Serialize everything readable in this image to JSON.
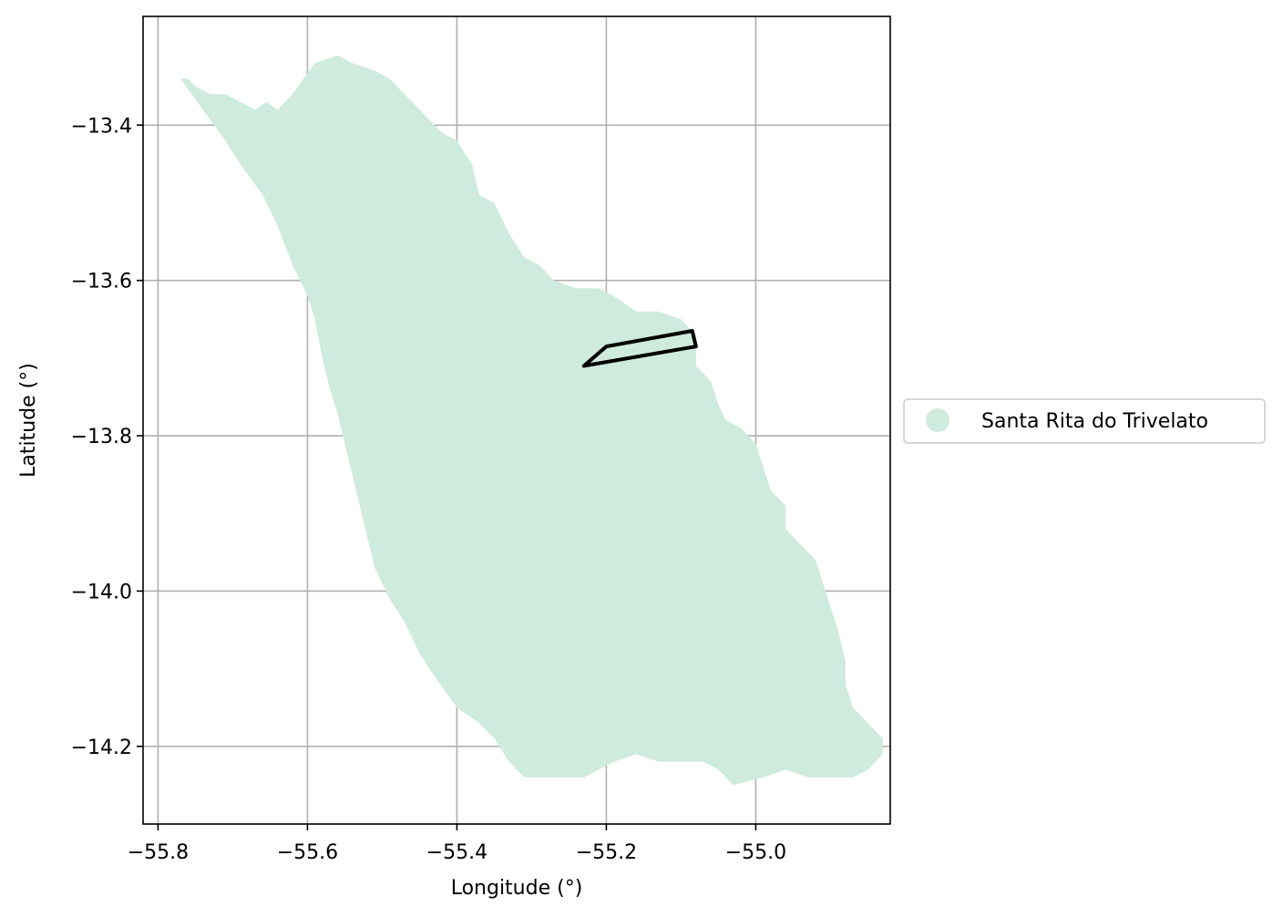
{
  "chart_data": {
    "type": "map",
    "xlabel": "Longitude (°)",
    "ylabel": "Latitude (°)",
    "xlim": [
      -55.82,
      -54.82
    ],
    "ylim": [
      -14.3,
      -13.26
    ],
    "xticks": [
      {
        "value": -55.8,
        "label": "−55.8"
      },
      {
        "value": -55.6,
        "label": "−55.6"
      },
      {
        "value": -55.4,
        "label": "−55.4"
      },
      {
        "value": -55.2,
        "label": "−55.2"
      },
      {
        "value": -55.0,
        "label": "−55.0"
      }
    ],
    "yticks": [
      {
        "value": -13.4,
        "label": "−13.4"
      },
      {
        "value": -13.6,
        "label": "−13.6"
      },
      {
        "value": -13.8,
        "label": "−13.8"
      },
      {
        "value": -14.0,
        "label": "−14.0"
      },
      {
        "value": -14.2,
        "label": "−14.2"
      }
    ],
    "grid": true,
    "legend": {
      "placement": "right",
      "entries": [
        {
          "label": "Santa Rita do Trivelato",
          "color": "#cfebdd"
        }
      ]
    },
    "region": {
      "name": "Santa Rita do Trivelato",
      "fill": "#cfebdd",
      "outline": [
        [
          -55.77,
          -13.34
        ],
        [
          -55.76,
          -13.34
        ],
        [
          -55.75,
          -13.35
        ],
        [
          -55.73,
          -13.36
        ],
        [
          -55.71,
          -13.36
        ],
        [
          -55.69,
          -13.37
        ],
        [
          -55.67,
          -13.38
        ],
        [
          -55.655,
          -13.37
        ],
        [
          -55.64,
          -13.38
        ],
        [
          -55.62,
          -13.36
        ],
        [
          -55.59,
          -13.32
        ],
        [
          -55.56,
          -13.31
        ],
        [
          -55.54,
          -13.32
        ],
        [
          -55.51,
          -13.33
        ],
        [
          -55.49,
          -13.34
        ],
        [
          -55.46,
          -13.37
        ],
        [
          -55.44,
          -13.39
        ],
        [
          -55.42,
          -13.41
        ],
        [
          -55.4,
          -13.42
        ],
        [
          -55.38,
          -13.45
        ],
        [
          -55.37,
          -13.49
        ],
        [
          -55.35,
          -13.5
        ],
        [
          -55.33,
          -13.54
        ],
        [
          -55.31,
          -13.57
        ],
        [
          -55.29,
          -13.58
        ],
        [
          -55.27,
          -13.6
        ],
        [
          -55.24,
          -13.61
        ],
        [
          -55.21,
          -13.61
        ],
        [
          -55.19,
          -13.62
        ],
        [
          -55.16,
          -13.64
        ],
        [
          -55.13,
          -13.64
        ],
        [
          -55.1,
          -13.65
        ],
        [
          -55.08,
          -13.67
        ],
        [
          -55.08,
          -13.71
        ],
        [
          -55.06,
          -13.73
        ],
        [
          -55.05,
          -13.76
        ],
        [
          -55.04,
          -13.78
        ],
        [
          -55.02,
          -13.79
        ],
        [
          -55.0,
          -13.81
        ],
        [
          -54.99,
          -13.84
        ],
        [
          -54.98,
          -13.87
        ],
        [
          -54.96,
          -13.89
        ],
        [
          -54.96,
          -13.92
        ],
        [
          -54.94,
          -13.94
        ],
        [
          -54.92,
          -13.96
        ],
        [
          -54.91,
          -13.99
        ],
        [
          -54.9,
          -14.02
        ],
        [
          -54.89,
          -14.05
        ],
        [
          -54.88,
          -14.09
        ],
        [
          -54.88,
          -14.12
        ],
        [
          -54.87,
          -14.15
        ],
        [
          -54.85,
          -14.17
        ],
        [
          -54.83,
          -14.19
        ],
        [
          -54.83,
          -14.21
        ],
        [
          -54.85,
          -14.23
        ],
        [
          -54.87,
          -14.24
        ],
        [
          -54.9,
          -14.24
        ],
        [
          -54.93,
          -14.24
        ],
        [
          -54.96,
          -14.23
        ],
        [
          -54.99,
          -14.24
        ],
        [
          -55.03,
          -14.25
        ],
        [
          -55.05,
          -14.23
        ],
        [
          -55.07,
          -14.22
        ],
        [
          -55.1,
          -14.22
        ],
        [
          -55.13,
          -14.22
        ],
        [
          -55.16,
          -14.21
        ],
        [
          -55.19,
          -14.22
        ],
        [
          -55.23,
          -14.24
        ],
        [
          -55.27,
          -14.24
        ],
        [
          -55.31,
          -14.24
        ],
        [
          -55.33,
          -14.22
        ],
        [
          -55.35,
          -14.19
        ],
        [
          -55.37,
          -14.17
        ],
        [
          -55.4,
          -14.15
        ],
        [
          -55.43,
          -14.11
        ],
        [
          -55.45,
          -14.08
        ],
        [
          -55.47,
          -14.04
        ],
        [
          -55.49,
          -14.01
        ],
        [
          -55.51,
          -13.97
        ],
        [
          -55.52,
          -13.93
        ],
        [
          -55.53,
          -13.89
        ],
        [
          -55.54,
          -13.85
        ],
        [
          -55.55,
          -13.81
        ],
        [
          -55.56,
          -13.77
        ],
        [
          -55.57,
          -13.74
        ],
        [
          -55.58,
          -13.7
        ],
        [
          -55.59,
          -13.65
        ],
        [
          -55.6,
          -13.62
        ],
        [
          -55.62,
          -13.58
        ],
        [
          -55.64,
          -13.53
        ],
        [
          -55.66,
          -13.49
        ],
        [
          -55.69,
          -13.45
        ],
        [
          -55.71,
          -13.42
        ],
        [
          -55.74,
          -13.38
        ],
        [
          -55.77,
          -13.34
        ]
      ]
    },
    "polygon": {
      "stroke": "#000000",
      "points": [
        [
          -55.23,
          -13.71
        ],
        [
          -55.2,
          -13.685
        ],
        [
          -55.085,
          -13.665
        ],
        [
          -55.08,
          -13.685
        ],
        [
          -55.23,
          -13.71
        ]
      ]
    }
  }
}
